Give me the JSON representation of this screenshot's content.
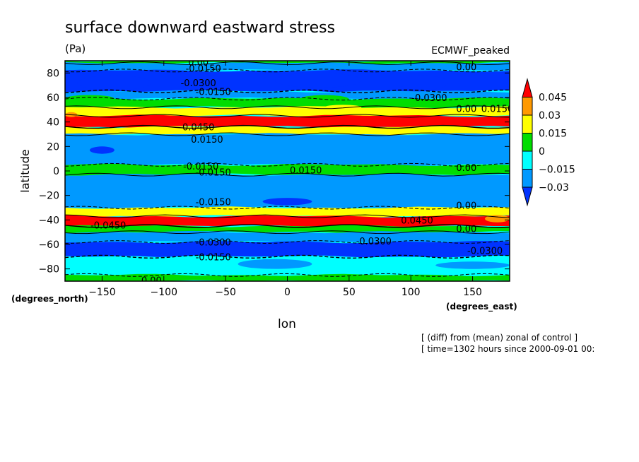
{
  "chart_data": {
    "type": "heatmap",
    "title": "surface downward eastward stress",
    "units": "(Pa)",
    "model_label": "ECMWF_peaked",
    "xlabel": "lon",
    "ylabel": "latitude",
    "x_units": "(degrees_east)",
    "y_units": "(degrees_north)",
    "xlim": [
      -180,
      180
    ],
    "ylim": [
      -90,
      90
    ],
    "x_ticks": [
      -150,
      -100,
      -50,
      0,
      50,
      100,
      150
    ],
    "y_ticks": [
      80,
      60,
      40,
      20,
      0,
      -20,
      -40,
      -60,
      -80
    ],
    "colorbar": {
      "levels": [
        0.045,
        0.03,
        0.015,
        0,
        -0.015,
        -0.03
      ],
      "level_labels": [
        "0.045",
        "0.03",
        "0.015",
        "0",
        "−0.015",
        "−0.03"
      ],
      "colors": [
        "#ff0000",
        "#ff9900",
        "#ffff00",
        "#00dd00",
        "#00ffff",
        "#0099ff",
        "#0033ff"
      ]
    },
    "bands": [
      {
        "lat": [
          88,
          90
        ],
        "value": 0.01
      },
      {
        "lat": [
          82,
          88
        ],
        "value": -0.02
      },
      {
        "lat": [
          65,
          82
        ],
        "value": -0.035
      },
      {
        "lat": [
          59,
          65
        ],
        "value": -0.02
      },
      {
        "lat": [
          52,
          59
        ],
        "value": 0.005
      },
      {
        "lat": [
          45,
          52
        ],
        "value": 0.025
      },
      {
        "lat": [
          36,
          45
        ],
        "value": 0.05
      },
      {
        "lat": [
          30,
          36
        ],
        "value": 0.02
      },
      {
        "lat": [
          5,
          30
        ],
        "value": -0.02
      },
      {
        "lat": [
          -3,
          5
        ],
        "value": 0.005
      },
      {
        "lat": [
          -30,
          -3
        ],
        "value": -0.02
      },
      {
        "lat": [
          -37,
          -30
        ],
        "value": 0.02
      },
      {
        "lat": [
          -45,
          -37
        ],
        "value": 0.05
      },
      {
        "lat": [
          -50,
          -45
        ],
        "value": 0.01
      },
      {
        "lat": [
          -58,
          -50
        ],
        "value": -0.02
      },
      {
        "lat": [
          -70,
          -58
        ],
        "value": -0.035
      },
      {
        "lat": [
          -85,
          -70
        ],
        "value": -0.008
      },
      {
        "lat": [
          -90,
          -85
        ],
        "value": 0.005
      }
    ],
    "patches": [
      {
        "lon": [
          -170,
          -110
        ],
        "lat": [
          66,
          78
        ],
        "value": -0.035
      },
      {
        "lon": [
          -10,
          60
        ],
        "lat": [
          68,
          80
        ],
        "value": -0.035
      },
      {
        "lon": [
          90,
          130
        ],
        "lat": [
          66,
          78
        ],
        "value": -0.035
      },
      {
        "lon": [
          -180,
          -140
        ],
        "lat": [
          56,
          62
        ],
        "value": 0.005
      },
      {
        "lon": [
          10,
          50
        ],
        "lat": [
          55,
          62
        ],
        "value": 0.005
      },
      {
        "lon": [
          -160,
          -140
        ],
        "lat": [
          14,
          20
        ],
        "value": -0.035
      },
      {
        "lon": [
          -20,
          20
        ],
        "lat": [
          -22,
          -28
        ],
        "value": -0.035
      },
      {
        "lon": [
          160,
          180
        ],
        "lat": [
          -36,
          -42
        ],
        "value": 0.03
      },
      {
        "lon": [
          140,
          180
        ],
        "lat": [
          -34,
          -36
        ],
        "value": 0.02
      },
      {
        "lon": [
          -180,
          180
        ],
        "lat": [
          -60,
          -68
        ],
        "value": -0.04
      },
      {
        "lon": [
          -40,
          20
        ],
        "lat": [
          -72,
          -80
        ],
        "value": -0.02
      },
      {
        "lon": [
          120,
          180
        ],
        "lat": [
          -74,
          -80
        ],
        "value": -0.02
      },
      {
        "lon": [
          -180,
          -170
        ],
        "lat": [
          44,
          48
        ],
        "value": 0.03
      },
      {
        "lon": [
          30,
          60
        ],
        "lat": [
          50,
          54
        ],
        "value": 0.02
      }
    ],
    "contour_labels": [
      {
        "text": "0.00",
        "lon": -72,
        "lat": 89
      },
      {
        "text": "-0.0150",
        "lon": -68,
        "lat": 84
      },
      {
        "text": "-0.0300",
        "lon": -72,
        "lat": 72
      },
      {
        "text": "-0.0150",
        "lon": -60,
        "lat": 65
      },
      {
        "text": "0.00",
        "lon": 145,
        "lat": 85
      },
      {
        "text": "-0.0300",
        "lon": 115,
        "lat": 60
      },
      {
        "text": "0.00",
        "lon": 145,
        "lat": 51
      },
      {
        "text": "0.0150",
        "lon": 170,
        "lat": 51
      },
      {
        "text": "0.0450",
        "lon": -72,
        "lat": 36
      },
      {
        "text": "0.0150",
        "lon": -65,
        "lat": 26
      },
      {
        "text": "-0.0150",
        "lon": -70,
        "lat": 4
      },
      {
        "text": "0.0150",
        "lon": 15,
        "lat": 1
      },
      {
        "text": "0.00",
        "lon": 145,
        "lat": 3
      },
      {
        "text": "-0.0150",
        "lon": -60,
        "lat": -1
      },
      {
        "text": "-0.0150",
        "lon": -60,
        "lat": -25
      },
      {
        "text": "0.00",
        "lon": 145,
        "lat": -28
      },
      {
        "text": "-0.0450",
        "lon": -145,
        "lat": -44
      },
      {
        "text": "0.0450",
        "lon": 105,
        "lat": -40
      },
      {
        "text": "0.00",
        "lon": 145,
        "lat": -47
      },
      {
        "text": "-0.0300",
        "lon": -60,
        "lat": -58
      },
      {
        "text": "-0.0300",
        "lon": 70,
        "lat": -57
      },
      {
        "text": "-0.0300",
        "lon": 160,
        "lat": -65
      },
      {
        "text": "-0.0150",
        "lon": -60,
        "lat": -70
      },
      {
        "text": "0.00",
        "lon": -110,
        "lat": -89
      }
    ]
  },
  "footer": {
    "line1": "[ (diff) from (mean) zonal of control ]",
    "line2": "[ time=1302 hours since 2000-09-01 00:"
  }
}
